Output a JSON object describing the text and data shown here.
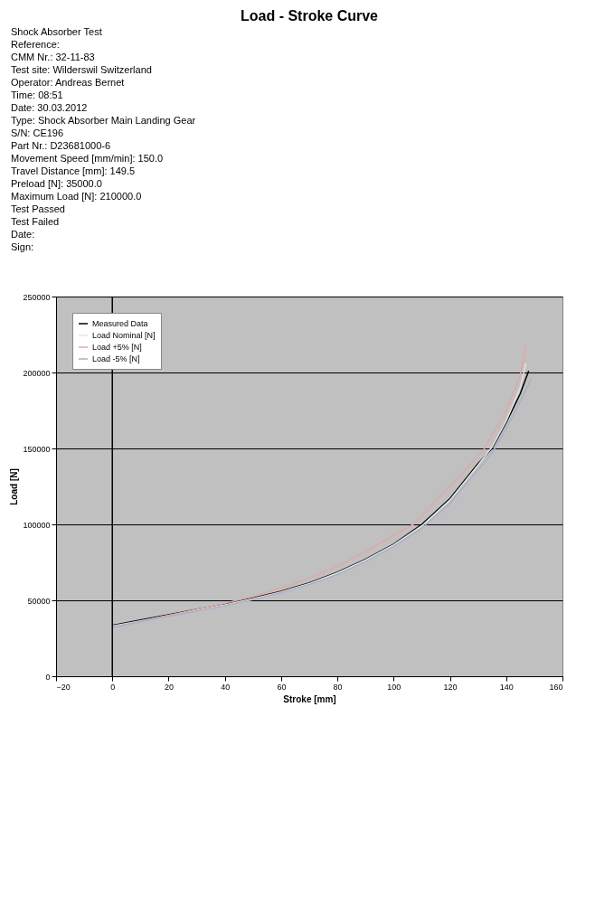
{
  "chart_data": {
    "type": "line",
    "title": "Load - Stroke Curve",
    "xlabel": "Stroke [mm]",
    "ylabel": "Load [N]",
    "annotations": [
      "Shock Absorber Test",
      "Reference:",
      "CMM Nr.: 32-11-83",
      "Test site: Wilderswil Switzerland",
      "Operator: Andreas Bernet",
      "Time: 08:51",
      "Date: 30.03.2012",
      "Type: Shock Absorber Main Landing Gear",
      "S/N: CE196",
      "Part Nr.: D23681000-6",
      "Movement Speed [mm/min]: 150.0",
      "Travel Distance [mm]: 149.5",
      "Preload [N]: 35000.0",
      "Maximum Load [N]: 210000.0",
      "Test Passed",
      "Test Failed",
      "Date:",
      "Sign:"
    ],
    "xlim": [
      -20,
      160
    ],
    "xticks": [
      -20,
      0,
      20,
      40,
      60,
      80,
      100,
      120,
      140,
      160
    ],
    "ylim": [
      0,
      250000
    ],
    "yticks": [
      0,
      50000,
      100000,
      150000,
      200000,
      250000
    ],
    "grid": "y",
    "legend": "top left",
    "line_style": "solid",
    "marker": "none",
    "ref_lines": [
      {
        "axis": "x",
        "value": 0,
        "color": "#000000"
      }
    ],
    "series": [
      {
        "name": "Measured Data",
        "color": "#000000",
        "x": [
          0,
          10,
          20,
          30,
          40,
          50,
          60,
          70,
          80,
          90,
          100,
          110,
          120,
          130,
          135,
          140,
          145,
          148
        ],
        "values": [
          33500,
          37000,
          40500,
          44000,
          47500,
          51500,
          56000,
          61500,
          68500,
          77000,
          87000,
          100000,
          117000,
          140000,
          150000,
          167000,
          186000,
          201000
        ]
      },
      {
        "name": "Load Nominal [N]",
        "color": "#e4e4e4",
        "x": [
          0,
          10,
          20,
          30,
          40,
          50,
          60,
          70,
          80,
          90,
          100,
          110,
          120,
          130,
          135,
          140,
          145,
          147
        ],
        "values": [
          33000,
          36500,
          40000,
          43500,
          47000,
          51000,
          55500,
          61000,
          68000,
          76500,
          86500,
          99000,
          116000,
          139000,
          151000,
          168000,
          190000,
          206000
        ]
      },
      {
        "name": "Load +5% [N]",
        "color": "#e0a8a8",
        "x": [
          0,
          10,
          20,
          30,
          40,
          50,
          60,
          70,
          80,
          90,
          100,
          107,
          120,
          132,
          140,
          145,
          147
        ],
        "values": [
          32000,
          36000,
          40000,
          44000,
          48000,
          52500,
          58000,
          64500,
          72500,
          82000,
          93000,
          100000,
          125000,
          149000,
          175000,
          198000,
          218000
        ]
      },
      {
        "name": "Load -5% [N]",
        "color": "#a8b0c8",
        "x": [
          0,
          10,
          20,
          30,
          40,
          50,
          60,
          70,
          80,
          90,
          100,
          110,
          120,
          130,
          135,
          140,
          145,
          149
        ],
        "values": [
          32500,
          36000,
          39500,
          43000,
          46500,
          50500,
          55000,
          60500,
          67000,
          75500,
          85500,
          97500,
          114000,
          136000,
          147000,
          163000,
          181000,
          196000
        ]
      }
    ]
  }
}
